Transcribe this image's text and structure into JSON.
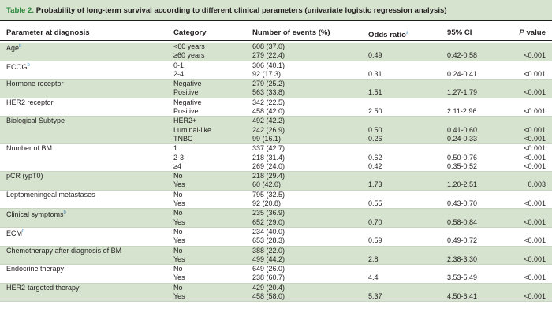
{
  "caption": {
    "label": "Table 2.",
    "text": "Probability of long-term survival according to different clinical parameters (univariate logistic regression analysis)"
  },
  "header": {
    "parameter": "Parameter at diagnosis",
    "category": "Category",
    "events": "Number of events (%)",
    "odds": "Odds ratio",
    "odds_note": "a",
    "ci": "95% CI",
    "p_italic": "P",
    "p_rest": " value"
  },
  "groups": [
    {
      "name": "Age",
      "note": "b",
      "shaded": true,
      "rows": [
        {
          "category": "<60 years",
          "events": "608 (37.0)",
          "odds": "",
          "ci": "",
          "p": ""
        },
        {
          "category": "≥60 years",
          "events": "279 (22.4)",
          "odds": "0.49",
          "ci": "0.42-0.58",
          "p": "<0.001"
        }
      ]
    },
    {
      "name": "ECOG",
      "note": "b",
      "shaded": false,
      "rows": [
        {
          "category": "0-1",
          "events": "306 (40.1)",
          "odds": "",
          "ci": "",
          "p": ""
        },
        {
          "category": "2-4",
          "events": "92 (17.3)",
          "odds": "0.31",
          "ci": "0.24-0.41",
          "p": "<0.001"
        }
      ]
    },
    {
      "name": "Hormone receptor",
      "note": "",
      "shaded": true,
      "rows": [
        {
          "category": "Negative",
          "events": "279 (25.2)",
          "odds": "",
          "ci": "",
          "p": ""
        },
        {
          "category": "Positive",
          "events": "563 (33.8)",
          "odds": "1.51",
          "ci": "1.27-1.79",
          "p": "<0.001"
        }
      ]
    },
    {
      "name": "HER2 receptor",
      "note": "",
      "shaded": false,
      "rows": [
        {
          "category": "Negative",
          "events": "342 (22.5)",
          "odds": "",
          "ci": "",
          "p": ""
        },
        {
          "category": "Positive",
          "events": "458 (42.0)",
          "odds": "2.50",
          "ci": "2.11-2.96",
          "p": "<0.001"
        }
      ]
    },
    {
      "name": "Biological Subtype",
      "note": "",
      "shaded": true,
      "rows": [
        {
          "category": "HER2+",
          "events": "492 (42.2)",
          "odds": "",
          "ci": "",
          "p": ""
        },
        {
          "category": "Luminal-like",
          "events": "242 (26.9)",
          "odds": "0.50",
          "ci": "0.41-0.60",
          "p": "<0.001"
        },
        {
          "category": "TNBC",
          "events": "99 (16.1)",
          "odds": "0.26",
          "ci": "0.24-0.33",
          "p": "<0.001"
        }
      ]
    },
    {
      "name": "Number of BM",
      "note": "",
      "shaded": false,
      "rows": [
        {
          "category": "1",
          "events": "337 (42.7)",
          "odds": "",
          "ci": "",
          "p": "<0.001"
        },
        {
          "category": "2-3",
          "events": "218 (31.4)",
          "odds": "0.62",
          "ci": "0.50-0.76",
          "p": "<0.001"
        },
        {
          "category": "≥4",
          "events": "269 (24.0)",
          "odds": "0.42",
          "ci": "0.35-0.52",
          "p": "<0.001"
        }
      ]
    },
    {
      "name": "pCR (ypT0)",
      "note": "",
      "shaded": true,
      "rows": [
        {
          "category": "No",
          "events": "218 (29.4)",
          "odds": "",
          "ci": "",
          "p": ""
        },
        {
          "category": "Yes",
          "events": "60 (42.0)",
          "odds": "1.73",
          "ci": "1.20-2.51",
          "p": "0.003"
        }
      ]
    },
    {
      "name": "Leptomeningeal metastases",
      "note": "",
      "shaded": false,
      "rows": [
        {
          "category": "No",
          "events": "795 (32.5)",
          "odds": "",
          "ci": "",
          "p": ""
        },
        {
          "category": "Yes",
          "events": "92 (20.8)",
          "odds": "0.55",
          "ci": "0.43-0.70",
          "p": "<0.001"
        }
      ]
    },
    {
      "name": "Clinical symptoms",
      "note": "b",
      "shaded": true,
      "rows": [
        {
          "category": "No",
          "events": "235 (36.9)",
          "odds": "",
          "ci": "",
          "p": ""
        },
        {
          "category": "Yes",
          "events": "652 (29.0)",
          "odds": "0.70",
          "ci": "0.58-0.84",
          "p": "<0.001"
        }
      ]
    },
    {
      "name": "ECM",
      "note": "b",
      "shaded": false,
      "rows": [
        {
          "category": "No",
          "events": "234 (40.0)",
          "odds": "",
          "ci": "",
          "p": ""
        },
        {
          "category": "Yes",
          "events": "653 (28.3)",
          "odds": "0.59",
          "ci": "0.49-0.72",
          "p": "<0.001"
        }
      ]
    },
    {
      "name": "Chemotherapy after diagnosis of BM",
      "note": "",
      "shaded": true,
      "rows": [
        {
          "category": "No",
          "events": "388 (22.0)",
          "odds": "",
          "ci": "",
          "p": ""
        },
        {
          "category": "Yes",
          "events": "499 (44.2)",
          "odds": "2.8",
          "ci": "2.38-3.30",
          "p": "<0.001"
        }
      ]
    },
    {
      "name": "Endocrine therapy",
      "note": "",
      "shaded": false,
      "rows": [
        {
          "category": "No",
          "events": "649 (26.0)",
          "odds": "",
          "ci": "",
          "p": ""
        },
        {
          "category": "Yes",
          "events": "238 (60.7)",
          "odds": "4.4",
          "ci": "3.53-5.49",
          "p": "<0.001"
        }
      ]
    },
    {
      "name": "HER2-targeted therapy",
      "note": "",
      "shaded": true,
      "rows": [
        {
          "category": "No",
          "events": "429 (20.4)",
          "odds": "",
          "ci": "",
          "p": ""
        },
        {
          "category": "Yes",
          "events": "458 (58.0)",
          "odds": "5.37",
          "ci": "4.50-6.41",
          "p": "<0.001"
        }
      ]
    }
  ]
}
